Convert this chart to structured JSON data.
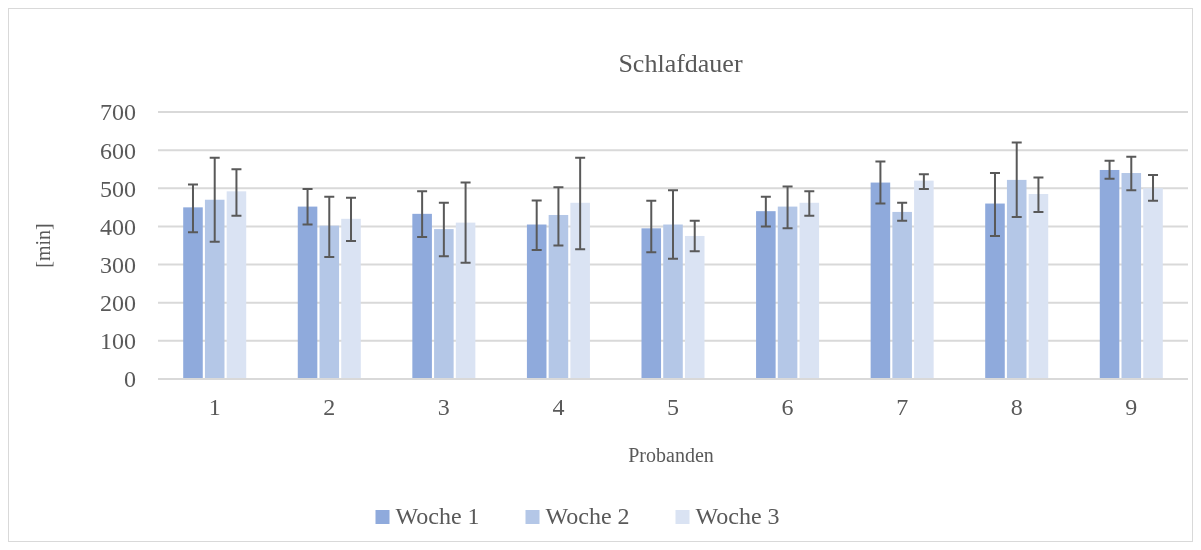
{
  "chart_data": {
    "type": "bar",
    "title": "Schlafdauer",
    "xlabel": "Probanden",
    "ylabel": "[min]",
    "categories": [
      "1",
      "2",
      "3",
      "4",
      "5",
      "6",
      "7",
      "8",
      "9"
    ],
    "series": [
      {
        "name": "Woche 1",
        "color": "#8faadc",
        "values": [
          450,
          452,
          433,
          405,
          395,
          440,
          515,
          460,
          548
        ],
        "errors": [
          [
            385,
            510
          ],
          [
            405,
            498
          ],
          [
            372,
            492
          ],
          [
            338,
            468
          ],
          [
            332,
            467
          ],
          [
            400,
            478
          ],
          [
            460,
            570
          ],
          [
            375,
            540
          ],
          [
            525,
            572
          ]
        ]
      },
      {
        "name": "Woche 2",
        "color": "#b4c7e7",
        "values": [
          470,
          402,
          393,
          430,
          405,
          452,
          438,
          522,
          540
        ],
        "errors": [
          [
            360,
            580
          ],
          [
            320,
            478
          ],
          [
            322,
            462
          ],
          [
            350,
            503
          ],
          [
            315,
            495
          ],
          [
            395,
            505
          ],
          [
            415,
            462
          ],
          [
            425,
            620
          ],
          [
            495,
            583
          ]
        ]
      },
      {
        "name": "Woche 3",
        "color": "#dae3f3",
        "values": [
          492,
          420,
          410,
          462,
          375,
          462,
          520,
          485,
          500
        ],
        "errors": [
          [
            428,
            550
          ],
          [
            362,
            475
          ],
          [
            305,
            515
          ],
          [
            340,
            580
          ],
          [
            335,
            415
          ],
          [
            428,
            492
          ],
          [
            498,
            537
          ],
          [
            438,
            528
          ],
          [
            467,
            535
          ]
        ]
      }
    ],
    "ylim": [
      0,
      700
    ],
    "yticks": [
      0,
      100,
      200,
      300,
      400,
      500,
      600,
      700
    ],
    "grid": "y",
    "legend": "bottom"
  }
}
